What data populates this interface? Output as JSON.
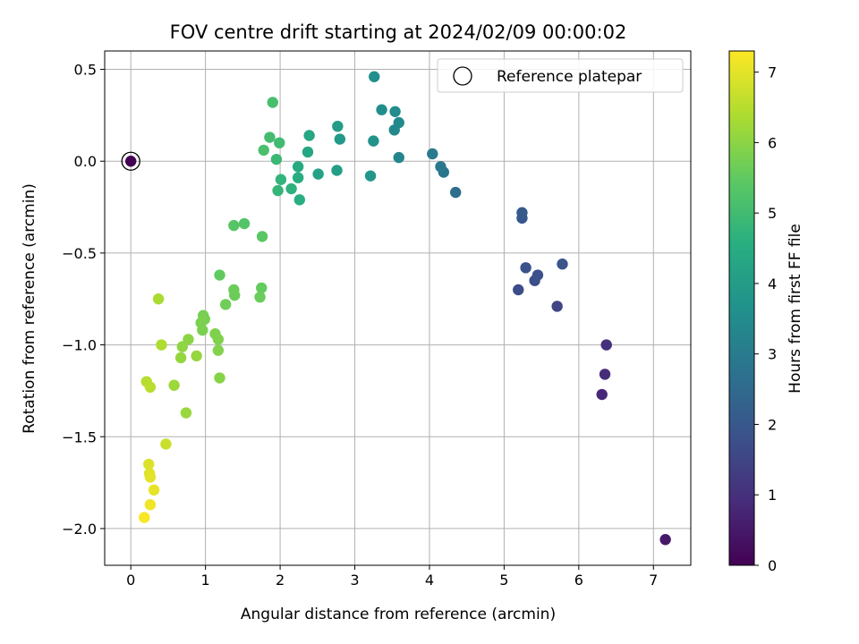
{
  "chart_data": {
    "type": "scatter",
    "title": "FOV centre drift starting at 2024/02/09 00:00:02",
    "xlabel": "Angular distance from reference (arcmin)",
    "ylabel": "Rotation from reference (arcmin)",
    "xlim": [
      -0.35,
      7.5
    ],
    "ylim": [
      -2.2,
      0.6
    ],
    "xticks": [
      0,
      1,
      2,
      3,
      4,
      5,
      6,
      7
    ],
    "xtick_labels": [
      "0",
      "1",
      "2",
      "3",
      "4",
      "5",
      "6",
      "7"
    ],
    "yticks": [
      0.5,
      0.0,
      -0.5,
      -1.0,
      -1.5,
      -2.0
    ],
    "ytick_labels": [
      "0.5",
      "0.0",
      "−0.5",
      "−1.0",
      "−1.5",
      "−2.0"
    ],
    "grid": true,
    "legend": {
      "position": "top-right",
      "entries": [
        "Reference platepar"
      ]
    },
    "colorbar": {
      "label": "Hours from first FF file",
      "colormap": "viridis",
      "range": [
        0,
        7.3
      ],
      "ticks": [
        0,
        1,
        2,
        3,
        4,
        5,
        6,
        7
      ],
      "tick_labels": [
        "0",
        "1",
        "2",
        "3",
        "4",
        "5",
        "6",
        "7"
      ]
    },
    "reference_point": {
      "x": 0,
      "y": 0,
      "label": "Reference platepar"
    },
    "points": [
      {
        "x": 0.0,
        "y": 0.0,
        "c": 0.0
      },
      {
        "x": 7.16,
        "y": -2.06,
        "c": 0.5
      },
      {
        "x": 6.31,
        "y": -1.27,
        "c": 0.8
      },
      {
        "x": 6.35,
        "y": -1.16,
        "c": 0.9
      },
      {
        "x": 6.37,
        "y": -1.0,
        "c": 1.0
      },
      {
        "x": 5.71,
        "y": -0.79,
        "c": 1.5
      },
      {
        "x": 5.19,
        "y": -0.7,
        "c": 1.7
      },
      {
        "x": 5.41,
        "y": -0.65,
        "c": 1.75
      },
      {
        "x": 5.45,
        "y": -0.62,
        "c": 1.8
      },
      {
        "x": 5.29,
        "y": -0.58,
        "c": 1.85
      },
      {
        "x": 5.78,
        "y": -0.56,
        "c": 1.9
      },
      {
        "x": 5.24,
        "y": -0.31,
        "c": 2.0
      },
      {
        "x": 5.24,
        "y": -0.28,
        "c": 2.05
      },
      {
        "x": 4.35,
        "y": -0.17,
        "c": 2.6
      },
      {
        "x": 4.19,
        "y": -0.06,
        "c": 2.8
      },
      {
        "x": 4.15,
        "y": -0.03,
        "c": 2.9
      },
      {
        "x": 4.04,
        "y": 0.04,
        "c": 3.0
      },
      {
        "x": 3.59,
        "y": 0.02,
        "c": 3.3
      },
      {
        "x": 3.53,
        "y": 0.17,
        "c": 3.4
      },
      {
        "x": 3.59,
        "y": 0.21,
        "c": 3.45
      },
      {
        "x": 3.54,
        "y": 0.27,
        "c": 3.5
      },
      {
        "x": 3.36,
        "y": 0.28,
        "c": 3.55
      },
      {
        "x": 3.26,
        "y": 0.46,
        "c": 3.6
      },
      {
        "x": 3.25,
        "y": 0.11,
        "c": 3.7
      },
      {
        "x": 3.21,
        "y": -0.08,
        "c": 3.8
      },
      {
        "x": 2.8,
        "y": 0.12,
        "c": 3.9
      },
      {
        "x": 2.77,
        "y": 0.19,
        "c": 4.0
      },
      {
        "x": 2.76,
        "y": -0.05,
        "c": 4.05
      },
      {
        "x": 2.51,
        "y": -0.07,
        "c": 4.2
      },
      {
        "x": 2.39,
        "y": 0.14,
        "c": 4.3
      },
      {
        "x": 2.37,
        "y": 0.05,
        "c": 4.35
      },
      {
        "x": 2.24,
        "y": -0.03,
        "c": 4.45
      },
      {
        "x": 2.24,
        "y": -0.09,
        "c": 4.5
      },
      {
        "x": 2.26,
        "y": -0.21,
        "c": 4.55
      },
      {
        "x": 2.15,
        "y": -0.15,
        "c": 4.65
      },
      {
        "x": 2.01,
        "y": -0.1,
        "c": 4.75
      },
      {
        "x": 1.97,
        "y": -0.16,
        "c": 4.8
      },
      {
        "x": 1.95,
        "y": 0.01,
        "c": 4.9
      },
      {
        "x": 1.99,
        "y": 0.1,
        "c": 5.0
      },
      {
        "x": 1.86,
        "y": 0.13,
        "c": 5.05
      },
      {
        "x": 1.9,
        "y": 0.32,
        "c": 5.1
      },
      {
        "x": 1.78,
        "y": 0.06,
        "c": 5.15
      },
      {
        "x": 1.52,
        "y": -0.34,
        "c": 5.3
      },
      {
        "x": 1.38,
        "y": -0.35,
        "c": 5.35
      },
      {
        "x": 1.76,
        "y": -0.41,
        "c": 5.4
      },
      {
        "x": 1.19,
        "y": -0.62,
        "c": 5.5
      },
      {
        "x": 1.75,
        "y": -0.69,
        "c": 5.55
      },
      {
        "x": 1.73,
        "y": -0.74,
        "c": 5.6
      },
      {
        "x": 1.38,
        "y": -0.7,
        "c": 5.62
      },
      {
        "x": 1.39,
        "y": -0.73,
        "c": 5.64
      },
      {
        "x": 1.27,
        "y": -0.78,
        "c": 5.68
      },
      {
        "x": 0.97,
        "y": -0.84,
        "c": 5.75
      },
      {
        "x": 0.99,
        "y": -0.86,
        "c": 5.78
      },
      {
        "x": 0.94,
        "y": -0.88,
        "c": 5.8
      },
      {
        "x": 0.96,
        "y": -0.92,
        "c": 5.82
      },
      {
        "x": 1.13,
        "y": -0.94,
        "c": 5.85
      },
      {
        "x": 1.17,
        "y": -0.97,
        "c": 5.87
      },
      {
        "x": 1.17,
        "y": -1.03,
        "c": 5.9
      },
      {
        "x": 1.19,
        "y": -1.18,
        "c": 5.95
      },
      {
        "x": 0.77,
        "y": -0.97,
        "c": 6.0
      },
      {
        "x": 0.69,
        "y": -1.01,
        "c": 6.05
      },
      {
        "x": 0.67,
        "y": -1.07,
        "c": 6.1
      },
      {
        "x": 0.88,
        "y": -1.06,
        "c": 6.12
      },
      {
        "x": 0.74,
        "y": -1.37,
        "c": 6.15
      },
      {
        "x": 0.58,
        "y": -1.22,
        "c": 6.2
      },
      {
        "x": 0.37,
        "y": -0.75,
        "c": 6.35
      },
      {
        "x": 0.41,
        "y": -1.0,
        "c": 6.4
      },
      {
        "x": 0.21,
        "y": -1.2,
        "c": 6.5
      },
      {
        "x": 0.26,
        "y": -1.23,
        "c": 6.55
      },
      {
        "x": 0.47,
        "y": -1.54,
        "c": 6.7
      },
      {
        "x": 0.24,
        "y": -1.65,
        "c": 6.9
      },
      {
        "x": 0.25,
        "y": -1.7,
        "c": 6.95
      },
      {
        "x": 0.26,
        "y": -1.72,
        "c": 7.0
      },
      {
        "x": 0.31,
        "y": -1.79,
        "c": 7.05
      },
      {
        "x": 0.26,
        "y": -1.87,
        "c": 7.15
      },
      {
        "x": 0.18,
        "y": -1.94,
        "c": 7.25
      }
    ]
  }
}
